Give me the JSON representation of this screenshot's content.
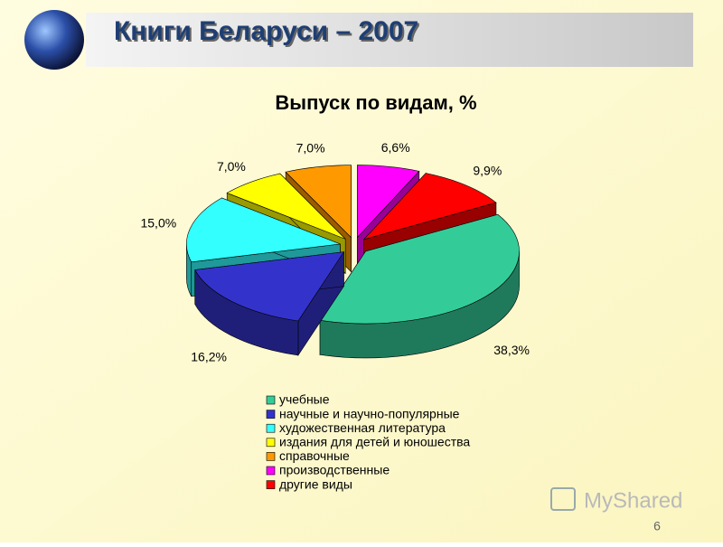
{
  "header": {
    "title": "Книги Беларуси – 2007"
  },
  "chart_data": {
    "type": "pie3d",
    "title": "Выпуск по видам, %",
    "categories": [
      "учебные",
      "научные и научно-популярные",
      "художественная литература",
      "издания для детей и юношества",
      "справочные",
      "производственные",
      "другие виды"
    ],
    "values": [
      38.3,
      16.2,
      15.0,
      7.0,
      7.0,
      6.6,
      9.9
    ],
    "value_labels": [
      "38,3%",
      "16,2%",
      "15,0%",
      "7,0%",
      "7,0%",
      "6,6%",
      "9,9%"
    ],
    "colors": [
      "#33cc99",
      "#3333cc",
      "#33ffff",
      "#ffff00",
      "#ff9900",
      "#ff00ff",
      "#ff0000"
    ]
  },
  "footer": {
    "watermark": "MyShared",
    "page_number": "6"
  }
}
